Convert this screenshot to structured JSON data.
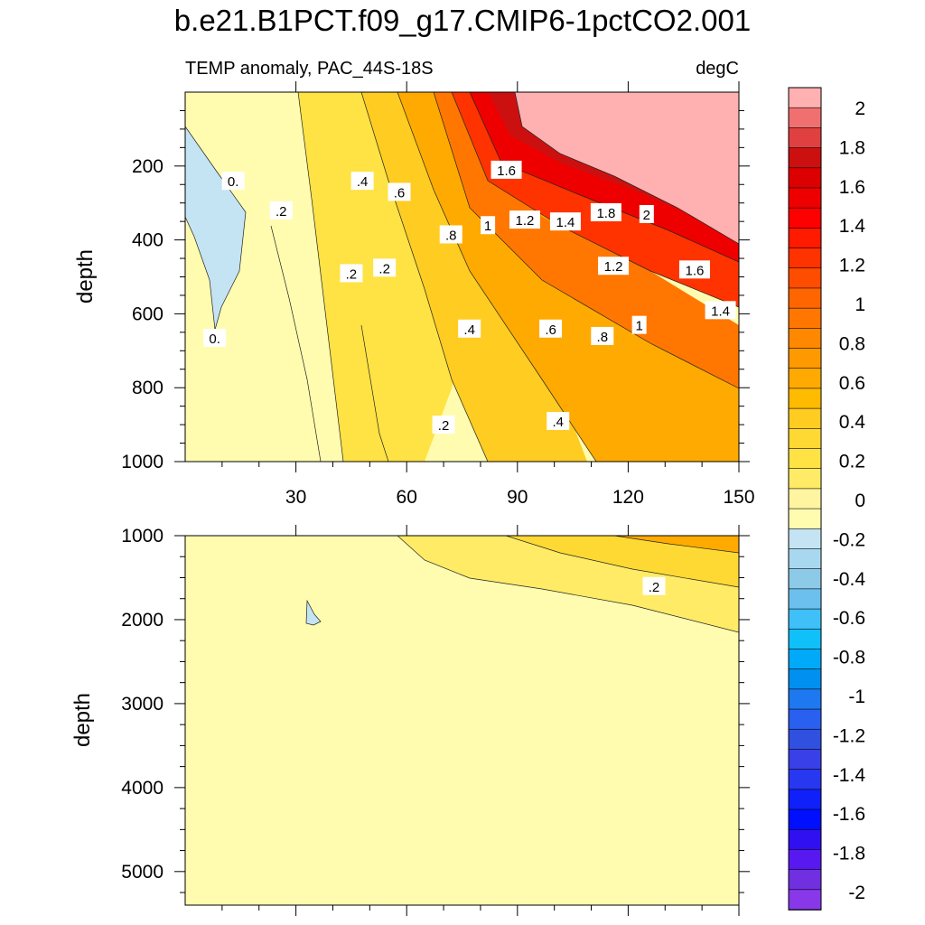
{
  "figure": {
    "title": "b.e21.B1PCT.f09_g17.CMIP6-1pctCO2.001",
    "subtitle_left": "TEMP anomaly, PAC_44S-18S",
    "subtitle_right": "degC"
  },
  "chart_data": {
    "type": "heatmap",
    "x": {
      "label": "",
      "range": [
        0,
        150
      ],
      "ticks": [
        30,
        60,
        90,
        120,
        150
      ]
    },
    "panels": [
      {
        "name": "upper",
        "ylabel": "depth",
        "yrange": [
          0,
          1000
        ],
        "ylim_display": [
          1000,
          0
        ],
        "yticks": [
          200,
          400,
          600,
          800,
          1000
        ],
        "contour_labels": [
          {
            "text": "0.",
            "x": 13,
            "y": 240
          },
          {
            "text": ".2",
            "x": 26,
            "y": 320
          },
          {
            "text": ".4",
            "x": 48,
            "y": 240
          },
          {
            "text": ".6",
            "x": 58,
            "y": 270
          },
          {
            "text": ".2",
            "x": 45,
            "y": 490
          },
          {
            "text": ".2",
            "x": 54,
            "y": 475
          },
          {
            "text": ".8",
            "x": 72,
            "y": 385
          },
          {
            "text": "1",
            "x": 82,
            "y": 360
          },
          {
            "text": "1.2",
            "x": 92,
            "y": 345
          },
          {
            "text": "1.4",
            "x": 103,
            "y": 350
          },
          {
            "text": "1.6",
            "x": 87,
            "y": 210
          },
          {
            "text": "1.8",
            "x": 114,
            "y": 325
          },
          {
            "text": "2",
            "x": 125,
            "y": 330
          },
          {
            "text": "1.2",
            "x": 116,
            "y": 470
          },
          {
            "text": "1.6",
            "x": 138,
            "y": 480
          },
          {
            "text": "1.4",
            "x": 145,
            "y": 590
          },
          {
            "text": "1",
            "x": 123,
            "y": 630
          },
          {
            "text": ".8",
            "x": 113,
            "y": 660
          },
          {
            "text": ".6",
            "x": 99,
            "y": 640
          },
          {
            "text": ".4",
            "x": 77,
            "y": 640
          },
          {
            "text": "0.",
            "x": 8,
            "y": 665
          },
          {
            "text": ".2",
            "x": 70,
            "y": 900
          },
          {
            "text": ".4",
            "x": 101,
            "y": 890
          }
        ]
      },
      {
        "name": "lower",
        "ylabel": "depth",
        "yrange": [
          1000,
          5400
        ],
        "ylim_display": [
          5400,
          1000
        ],
        "yticks": [
          1000,
          2000,
          3000,
          4000,
          5000
        ],
        "contour_labels": [
          {
            "text": ".2",
            "x": 127,
            "y": 1600
          }
        ]
      }
    ],
    "colorbar": {
      "levels": [
        -2,
        -1.8,
        -1.6,
        -1.4,
        -1.2,
        -1,
        -0.8,
        -0.6,
        -0.4,
        -0.2,
        0,
        0.1,
        0.2,
        0.3,
        0.4,
        0.5,
        0.6,
        0.7,
        0.8,
        0.9,
        1,
        1.1,
        1.2,
        1.3,
        1.4,
        1.5,
        1.6,
        1.7,
        1.8,
        1.9,
        2
      ],
      "labels": [
        "2",
        "1.8",
        "1.6",
        "1.4",
        "1.2",
        "1",
        "0.8",
        "0.6",
        "0.4",
        "0.2",
        "0",
        "-0.2",
        "-0.4",
        "-0.6",
        "-0.8",
        "-1",
        "-1.2",
        "-1.4",
        "-1.6",
        "-1.8",
        "-2"
      ],
      "colors_top_to_bottom": [
        "#ffb0b0",
        "#f07070",
        "#e04040",
        "#cc1010",
        "#dd0000",
        "#ee0000",
        "#ff0000",
        "#ff1a00",
        "#ff3300",
        "#ff4d00",
        "#ff6600",
        "#ff7700",
        "#ff8800",
        "#ff9900",
        "#ffaa00",
        "#ffbb00",
        "#ffcc22",
        "#ffd933",
        "#ffe244",
        "#ffeb66",
        "#fff4a0",
        "#fffcb0",
        "#c4e4f4",
        "#a8d8f0",
        "#8ccae8",
        "#6cc0ee",
        "#40c0f8",
        "#10c0f8",
        "#00aaf8",
        "#0090f0",
        "#1e78f0",
        "#2a60f0",
        "#3050e0",
        "#3a40e8",
        "#2838f0",
        "#1020f8",
        "#0010ff",
        "#3010f0",
        "#5818f0",
        "#7030e0",
        "#8838e8"
      ]
    },
    "field_colors": {
      "zero_band": "#fffcb0",
      "negative_band": "#c4e4f4",
      "max_band": "#ffb0b0"
    }
  }
}
